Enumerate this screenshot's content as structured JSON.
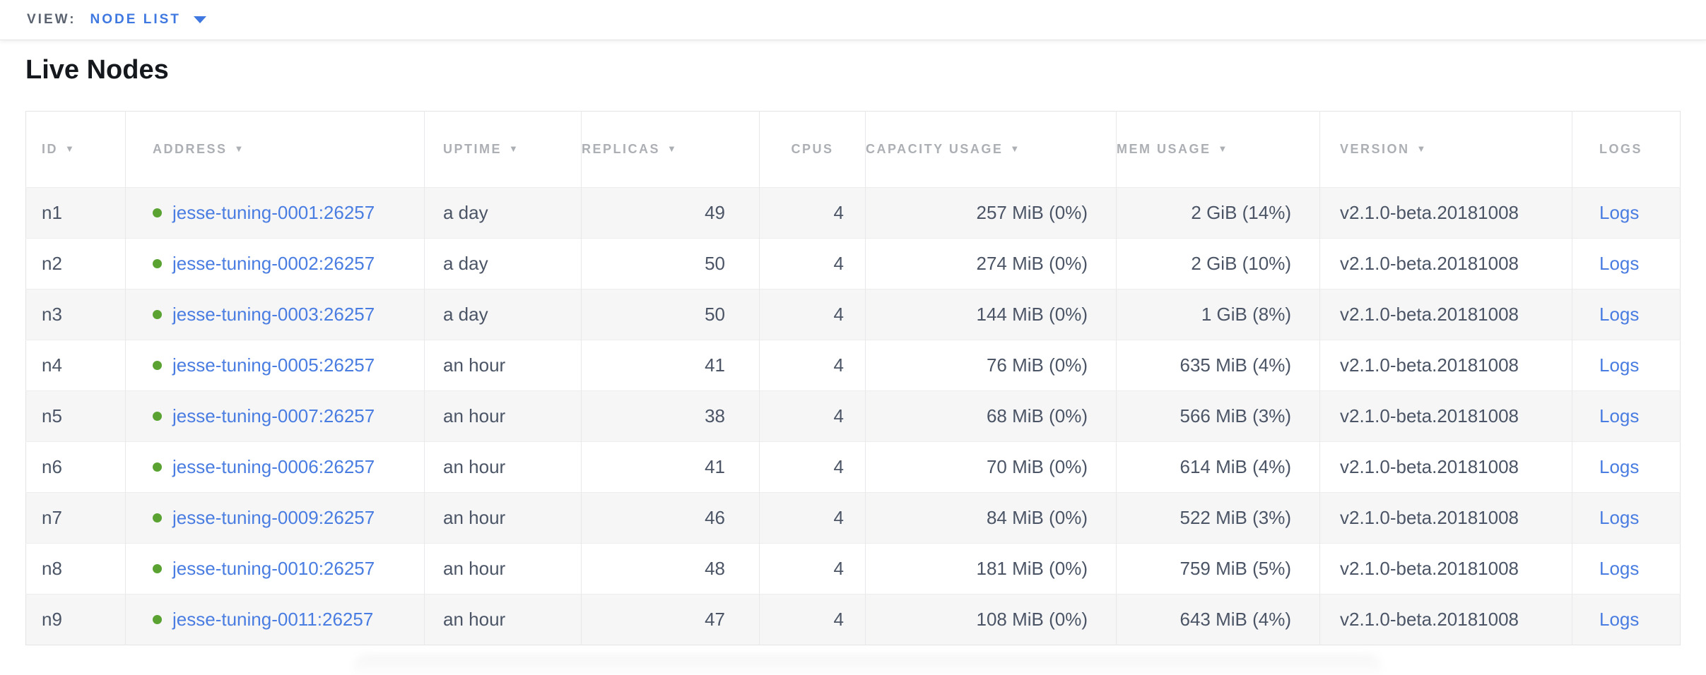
{
  "topbar": {
    "view_label": "VIEW:",
    "view_value": "NODE LIST"
  },
  "page": {
    "title": "Live Nodes"
  },
  "icons": {
    "sort_desc": "▼",
    "node_health": "green-dot"
  },
  "colors": {
    "accent": "#3e78e0",
    "link": "#4a7de1",
    "health-green": "#5aa332",
    "header-text": "#acafb4",
    "cell-text": "#4b5566",
    "view-label-text": "#5b6370",
    "title-text": "#15181d",
    "row-stripe": "#f6f6f7",
    "table-border": "#e4e4e6",
    "col-border": "#e9e9eb",
    "row-border": "#ededef"
  },
  "table": {
    "columns": [
      {
        "key": "id",
        "label": "ID",
        "sort": true,
        "align": "left",
        "header_align": "left"
      },
      {
        "key": "address",
        "label": "ADDRESS",
        "sort": true,
        "align": "left",
        "header_align": "left"
      },
      {
        "key": "uptime",
        "label": "UPTIME",
        "sort": true,
        "align": "left",
        "header_align": "left"
      },
      {
        "key": "replicas",
        "label": "REPLICAS",
        "sort": true,
        "align": "right",
        "header_align": "left"
      },
      {
        "key": "cpus",
        "label": "CPUS",
        "sort": false,
        "align": "right",
        "header_align": "center"
      },
      {
        "key": "capacity",
        "label": "CAPACITY USAGE",
        "sort": true,
        "align": "right",
        "header_align": "left"
      },
      {
        "key": "mem",
        "label": "MEM USAGE",
        "sort": true,
        "align": "right",
        "header_align": "left"
      },
      {
        "key": "version",
        "label": "VERSION",
        "sort": true,
        "align": "left",
        "header_align": "left"
      },
      {
        "key": "logs",
        "label": "LOGS",
        "sort": false,
        "align": "left",
        "header_align": "left"
      }
    ],
    "rows": [
      {
        "id": "n1",
        "status": "healthy",
        "address": "jesse-tuning-0001:26257",
        "uptime": "a day",
        "replicas": "49",
        "cpus": "4",
        "capacity": "257 MiB (0%)",
        "mem": "2 GiB (14%)",
        "version": "v2.1.0-beta.20181008",
        "logs": "Logs"
      },
      {
        "id": "n2",
        "status": "healthy",
        "address": "jesse-tuning-0002:26257",
        "uptime": "a day",
        "replicas": "50",
        "cpus": "4",
        "capacity": "274 MiB (0%)",
        "mem": "2 GiB (10%)",
        "version": "v2.1.0-beta.20181008",
        "logs": "Logs"
      },
      {
        "id": "n3",
        "status": "healthy",
        "address": "jesse-tuning-0003:26257",
        "uptime": "a day",
        "replicas": "50",
        "cpus": "4",
        "capacity": "144 MiB (0%)",
        "mem": "1 GiB (8%)",
        "version": "v2.1.0-beta.20181008",
        "logs": "Logs"
      },
      {
        "id": "n4",
        "status": "healthy",
        "address": "jesse-tuning-0005:26257",
        "uptime": "an hour",
        "replicas": "41",
        "cpus": "4",
        "capacity": "76 MiB (0%)",
        "mem": "635 MiB (4%)",
        "version": "v2.1.0-beta.20181008",
        "logs": "Logs"
      },
      {
        "id": "n5",
        "status": "healthy",
        "address": "jesse-tuning-0007:26257",
        "uptime": "an hour",
        "replicas": "38",
        "cpus": "4",
        "capacity": "68 MiB (0%)",
        "mem": "566 MiB (3%)",
        "version": "v2.1.0-beta.20181008",
        "logs": "Logs"
      },
      {
        "id": "n6",
        "status": "healthy",
        "address": "jesse-tuning-0006:26257",
        "uptime": "an hour",
        "replicas": "41",
        "cpus": "4",
        "capacity": "70 MiB (0%)",
        "mem": "614 MiB (4%)",
        "version": "v2.1.0-beta.20181008",
        "logs": "Logs"
      },
      {
        "id": "n7",
        "status": "healthy",
        "address": "jesse-tuning-0009:26257",
        "uptime": "an hour",
        "replicas": "46",
        "cpus": "4",
        "capacity": "84 MiB (0%)",
        "mem": "522 MiB (3%)",
        "version": "v2.1.0-beta.20181008",
        "logs": "Logs"
      },
      {
        "id": "n8",
        "status": "healthy",
        "address": "jesse-tuning-0010:26257",
        "uptime": "an hour",
        "replicas": "48",
        "cpus": "4",
        "capacity": "181 MiB (0%)",
        "mem": "759 MiB (5%)",
        "version": "v2.1.0-beta.20181008",
        "logs": "Logs"
      },
      {
        "id": "n9",
        "status": "healthy",
        "address": "jesse-tuning-0011:26257",
        "uptime": "an hour",
        "replicas": "47",
        "cpus": "4",
        "capacity": "108 MiB (0%)",
        "mem": "643 MiB (4%)",
        "version": "v2.1.0-beta.20181008",
        "logs": "Logs"
      }
    ]
  }
}
